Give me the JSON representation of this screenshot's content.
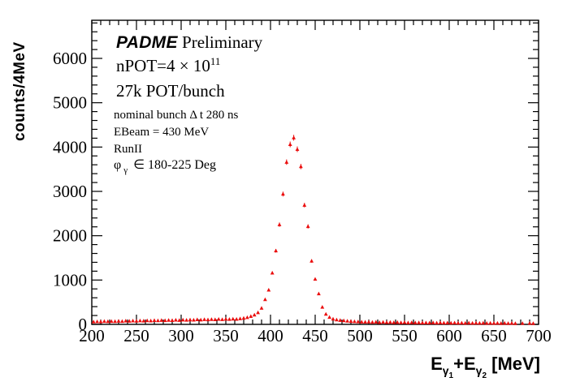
{
  "figure": {
    "background": "#ffffff",
    "frame_color": "#000000",
    "marker_color": "#ea0c0c"
  },
  "annotations": {
    "brand": "PADME",
    "brand_suffix": "Preliminary",
    "npot_prefix": "nPOT=4 × 10",
    "npot_exponent": "11",
    "pot_per_bunch": "27k POT/bunch",
    "bunch_line": "nominal bunch Δ t 280 ns",
    "ebeam_line": "EBeam = 430 MeV",
    "run_line": "RunII",
    "phi_symbol": "φ",
    "phi_subscript": "γ",
    "phi_rest": "∈ 180-225 Deg"
  },
  "axes": {
    "y_title": "counts/4MeV",
    "x_title": {
      "e1": "E",
      "sub1": "γ",
      "subsub1": "1",
      "plus": "+E",
      "sub2": "γ",
      "subsub2": "2",
      "unit": " [MeV]"
    },
    "x": {
      "min": 200,
      "max": 700,
      "major_tick_labels": [
        200,
        250,
        300,
        350,
        400,
        450,
        500,
        550,
        600,
        650,
        700
      ],
      "major_step": 50,
      "minor_step": 10
    },
    "y": {
      "min": 0,
      "max": 6860,
      "major_tick_labels": [
        0,
        1000,
        2000,
        3000,
        4000,
        5000,
        6000
      ],
      "major_step": 1000,
      "minor_step": 200
    }
  },
  "chart_data": {
    "type": "scatter",
    "marker": "triangle-up",
    "marker_color": "#ea0c0c",
    "error_bars": "sqrt(N)",
    "title": "PADME Preliminary",
    "xlabel": "E_gamma1 + E_gamma2 [MeV]",
    "ylabel": "counts/4MeV",
    "xlim": [
      200,
      700
    ],
    "ylim": [
      0,
      6860
    ],
    "bin_width_mev": 4,
    "grid": false,
    "legend": false,
    "x": [
      202,
      206,
      210,
      214,
      218,
      222,
      226,
      230,
      234,
      238,
      242,
      246,
      250,
      254,
      258,
      262,
      266,
      270,
      274,
      278,
      282,
      286,
      290,
      294,
      298,
      302,
      306,
      310,
      314,
      318,
      322,
      326,
      330,
      334,
      338,
      342,
      346,
      350,
      354,
      358,
      362,
      366,
      370,
      374,
      378,
      382,
      386,
      390,
      394,
      398,
      402,
      406,
      410,
      414,
      418,
      422,
      426,
      430,
      434,
      438,
      442,
      446,
      450,
      454,
      458,
      462,
      466,
      470,
      474,
      478,
      482,
      486,
      490,
      494,
      498,
      502,
      506,
      510,
      514,
      518,
      522,
      526,
      530,
      534,
      538,
      542,
      546,
      550,
      554,
      558,
      562,
      566,
      570,
      574,
      578,
      582,
      586,
      590,
      594,
      598,
      602,
      606,
      610,
      614,
      618,
      622,
      626,
      630,
      634,
      638,
      642,
      646,
      650,
      654,
      658,
      662,
      666,
      670,
      674,
      678,
      682,
      686,
      690,
      694,
      698
    ],
    "y": [
      58,
      63,
      60,
      68,
      64,
      70,
      66,
      74,
      70,
      78,
      73,
      80,
      75,
      83,
      78,
      86,
      81,
      89,
      84,
      92,
      87,
      95,
      90,
      98,
      93,
      101,
      96,
      104,
      99,
      107,
      102,
      110,
      105,
      113,
      108,
      116,
      111,
      119,
      114,
      122,
      118,
      128,
      140,
      156,
      180,
      212,
      265,
      366,
      560,
      775,
      1160,
      1660,
      2250,
      2940,
      3660,
      4060,
      4210,
      3950,
      3560,
      2690,
      2210,
      1430,
      1020,
      690,
      390,
      232,
      160,
      122,
      104,
      92,
      84,
      76,
      70,
      64,
      60,
      56,
      52,
      55,
      48,
      52,
      45,
      50,
      44,
      48,
      42,
      46,
      40,
      44,
      38,
      42,
      36,
      40,
      35,
      38,
      34,
      37,
      33,
      36,
      32,
      35,
      31,
      34,
      30,
      33,
      29,
      32,
      28,
      31,
      27,
      30,
      26,
      29,
      25,
      28,
      24,
      27,
      23,
      26,
      22,
      0,
      24,
      0,
      26,
      20,
      0
    ]
  }
}
